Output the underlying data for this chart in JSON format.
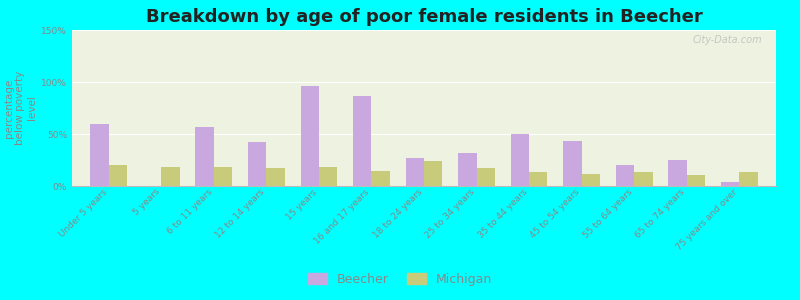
{
  "title": "Breakdown by age of poor female residents in Beecher",
  "ylabel": "percentage\nbelow poverty\nlevel",
  "categories": [
    "Under 5 years",
    "5 years",
    "6 to 11 years",
    "12 to 14 years",
    "15 years",
    "16 and 17 years",
    "18 to 24 years",
    "25 to 34 years",
    "35 to 44 years",
    "45 to 54 years",
    "55 to 64 years",
    "65 to 74 years",
    "75 years and over"
  ],
  "beecher_values": [
    60,
    0,
    57,
    42,
    96,
    87,
    27,
    32,
    50,
    43,
    20,
    25,
    4
  ],
  "michigan_values": [
    20,
    18,
    18,
    17,
    18,
    14,
    24,
    17,
    13,
    12,
    13,
    11,
    13
  ],
  "beecher_color": "#c9a8e0",
  "michigan_color": "#c8cc7a",
  "background_color": "#00ffff",
  "plot_bg_color": "#eef2e0",
  "ylim": [
    0,
    150
  ],
  "yticks": [
    0,
    50,
    100,
    150
  ],
  "ytick_labels": [
    "0%",
    "50%",
    "100%",
    "150%"
  ],
  "bar_width": 0.35,
  "title_fontsize": 13,
  "axis_label_fontsize": 7.5,
  "tick_label_fontsize": 6.5,
  "legend_labels": [
    "Beecher",
    "Michigan"
  ],
  "watermark": "City-Data.com"
}
